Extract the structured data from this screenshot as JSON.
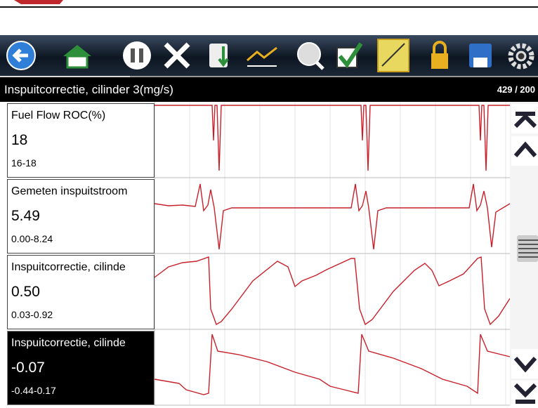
{
  "header": {
    "title": "Inspuitcorrectie, cilinder 3(mg/s)",
    "counter": "429 / 200"
  },
  "rows": [
    {
      "name": "Fuel Flow ROC(%)",
      "value": "18",
      "range": "16-18"
    },
    {
      "name": "Gemeten inspuitstroom",
      "value": "5.49",
      "range": "0.00-8.24"
    },
    {
      "name": "Inspuitcorrectie, cilinde",
      "value": "0.50",
      "range": "0.03-0.92"
    },
    {
      "name": "Inspuitcorrectie, cilinde",
      "value": "-0.07",
      "range": "-0.44-0.17"
    }
  ]
}
